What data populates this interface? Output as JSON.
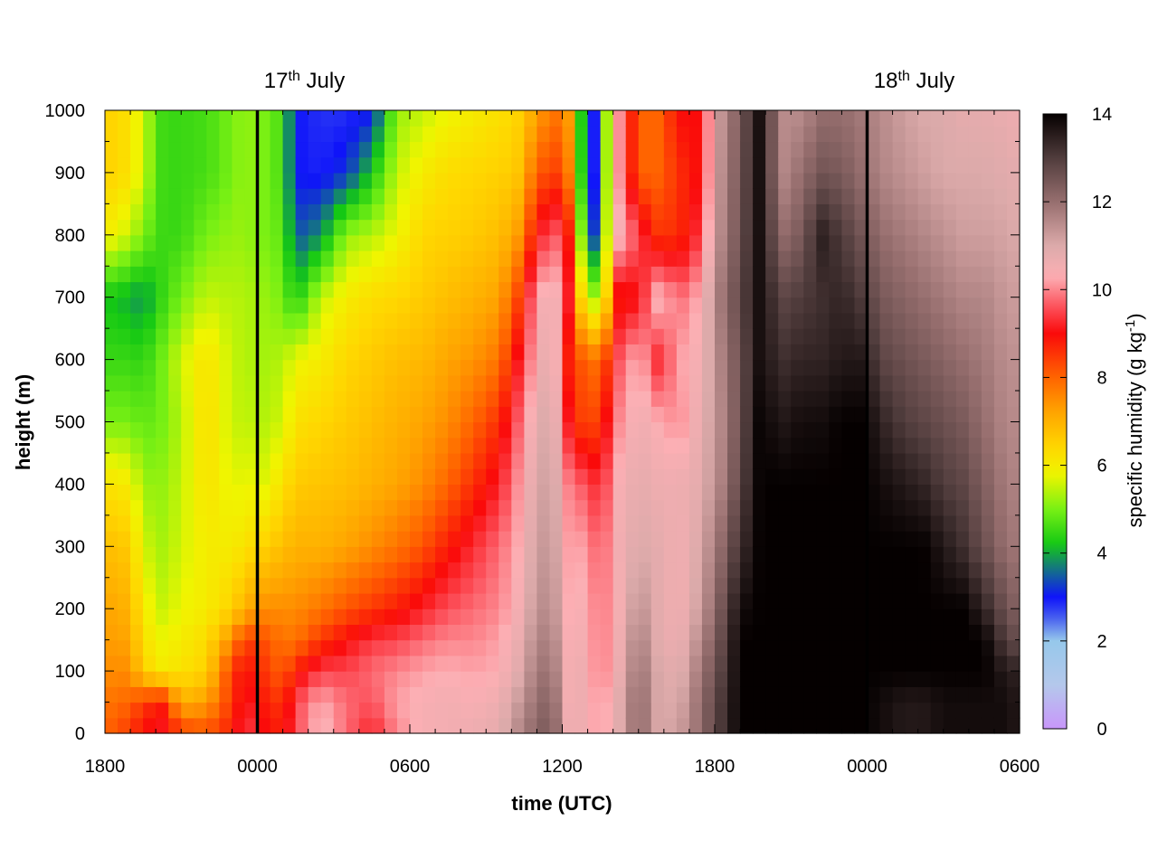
{
  "chart_data": {
    "type": "heatmap",
    "xlabel": "time (UTC)",
    "ylabel": "height (m)",
    "x_ticks": [
      "1800",
      "0000",
      "0600",
      "1200",
      "1800",
      "0000",
      "0600"
    ],
    "x_tick_hours": [
      0,
      6,
      12,
      18,
      24,
      30,
      36
    ],
    "x_range_hours": [
      0,
      36
    ],
    "y_ticks": [
      "0",
      "100",
      "200",
      "300",
      "400",
      "500",
      "600",
      "700",
      "800",
      "900",
      "1000"
    ],
    "ylim": [
      0,
      1000
    ],
    "date_markers": [
      {
        "hour": 6,
        "day": "17",
        "suffix": "th",
        "month": "July"
      },
      {
        "hour": 30,
        "day": "18",
        "suffix": "th",
        "month": "July"
      }
    ],
    "colorbar": {
      "label_pre": "specific humidity (g kg",
      "label_sup": "-1",
      "label_post": ")",
      "range": [
        0,
        14
      ],
      "ticks": [
        "0",
        "2",
        "4",
        "6",
        "8",
        "10",
        "12",
        "14"
      ],
      "tick_values": [
        0,
        2,
        4,
        6,
        8,
        10,
        12,
        14
      ]
    },
    "heights": [
      0,
      50,
      100,
      150,
      200,
      300,
      400,
      500,
      600,
      700,
      800,
      900,
      1000
    ],
    "profiles": [
      {
        "t": 0.0,
        "q": [
          8.0,
          7.8,
          7.5,
          7.3,
          7.2,
          6.8,
          6.2,
          5.0,
          4.5,
          4.2,
          6.0,
          6.5,
          6.5
        ]
      },
      {
        "t": 1.0,
        "q": [
          8.5,
          8.0,
          7.5,
          7.2,
          7.0,
          6.6,
          6.0,
          5.0,
          4.5,
          4.0,
          5.5,
          6.2,
          6.2
        ]
      },
      {
        "t": 1.5,
        "q": [
          9.0,
          8.5,
          6.5,
          6.2,
          6.0,
          5.6,
          5.2,
          4.8,
          4.4,
          3.8,
          5.0,
          5.5,
          5.5
        ]
      },
      {
        "t": 2.3,
        "q": [
          9.2,
          8.8,
          6.0,
          5.8,
          5.5,
          5.3,
          5.2,
          5.0,
          5.0,
          4.5,
          4.5,
          4.5,
          4.5
        ]
      },
      {
        "t": 3.0,
        "q": [
          8.5,
          7.0,
          6.2,
          6.0,
          5.8,
          5.6,
          5.5,
          5.4,
          5.6,
          5.0,
          4.5,
          4.5,
          4.5
        ]
      },
      {
        "t": 4.0,
        "q": [
          8.2,
          7.3,
          6.5,
          6.3,
          6.0,
          6.0,
          6.2,
          6.3,
          6.2,
          5.5,
          5.0,
          4.6,
          4.6
        ]
      },
      {
        "t": 5.0,
        "q": [
          8.8,
          8.5,
          8.5,
          7.5,
          6.5,
          6.0,
          5.7,
          5.5,
          5.5,
          5.4,
          5.2,
          5.0,
          5.0
        ]
      },
      {
        "t": 5.5,
        "q": [
          9.5,
          9.2,
          9.0,
          8.5,
          7.0,
          6.2,
          5.8,
          5.5,
          5.4,
          5.4,
          5.2,
          5.2,
          5.2
        ]
      },
      {
        "t": 6.3,
        "q": [
          9.0,
          8.8,
          8.5,
          8.2,
          7.5,
          6.5,
          5.7,
          5.4,
          5.3,
          5.2,
          5.0,
          5.0,
          5.0
        ]
      },
      {
        "t": 7.0,
        "q": [
          8.8,
          8.5,
          8.0,
          7.8,
          7.5,
          6.8,
          6.2,
          5.6,
          5.4,
          5.0,
          4.8,
          4.6,
          4.6
        ]
      },
      {
        "t": 7.5,
        "q": [
          9.5,
          9.5,
          8.8,
          7.8,
          7.5,
          7.0,
          6.6,
          6.2,
          5.8,
          4.2,
          3.4,
          3.0,
          3.0
        ]
      },
      {
        "t": 8.5,
        "q": [
          10.5,
          10.3,
          9.5,
          8.5,
          7.8,
          7.0,
          6.7,
          6.4,
          6.0,
          5.5,
          3.8,
          2.9,
          2.8
        ]
      },
      {
        "t": 9.5,
        "q": [
          9.8,
          9.8,
          9.5,
          9.0,
          8.2,
          7.2,
          6.8,
          6.6,
          6.4,
          6.0,
          5.2,
          3.2,
          2.8
        ]
      },
      {
        "t": 10.5,
        "q": [
          9.2,
          9.6,
          9.8,
          9.4,
          8.5,
          7.5,
          7.0,
          6.8,
          6.6,
          6.3,
          5.4,
          4.2,
          3.0
        ]
      },
      {
        "t": 11.5,
        "q": [
          10.0,
          10.2,
          10.0,
          9.5,
          8.8,
          7.8,
          7.2,
          7.0,
          6.8,
          6.4,
          5.8,
          5.5,
          5.2
        ]
      },
      {
        "t": 12.5,
        "q": [
          10.4,
          10.4,
          10.2,
          9.8,
          9.2,
          8.2,
          7.5,
          7.2,
          6.9,
          6.6,
          6.4,
          6.0,
          5.5
        ]
      },
      {
        "t": 13.5,
        "q": [
          10.5,
          10.5,
          10.3,
          10.0,
          9.6,
          8.8,
          8.0,
          7.5,
          7.2,
          6.8,
          6.5,
          6.3,
          5.8
        ]
      },
      {
        "t": 14.5,
        "q": [
          10.6,
          10.4,
          10.2,
          10.0,
          9.8,
          9.3,
          8.6,
          8.0,
          7.4,
          7.0,
          6.6,
          6.4,
          6.0
        ]
      },
      {
        "t": 15.5,
        "q": [
          10.8,
          10.6,
          10.3,
          10.2,
          10.0,
          9.8,
          9.2,
          8.6,
          7.8,
          7.2,
          6.8,
          6.5,
          6.2
        ]
      },
      {
        "t": 16.2,
        "q": [
          11.5,
          11.2,
          10.8,
          10.6,
          10.4,
          10.2,
          10.0,
          9.6,
          9.0,
          8.2,
          7.2,
          6.6,
          6.4
        ]
      },
      {
        "t": 17.0,
        "q": [
          12.2,
          12.0,
          11.8,
          11.6,
          11.4,
          11.2,
          11.0,
          10.8,
          10.4,
          10.2,
          9.0,
          8.0,
          7.2
        ]
      },
      {
        "t": 17.6,
        "q": [
          12.5,
          12.3,
          12.0,
          11.8,
          11.6,
          11.4,
          11.3,
          11.2,
          11.0,
          10.8,
          9.8,
          8.5,
          7.8
        ]
      },
      {
        "t": 18.2,
        "q": [
          10.6,
          10.5,
          10.5,
          10.4,
          10.3,
          10.2,
          10.0,
          9.2,
          8.8,
          9.5,
          9.2,
          8.0,
          7.6
        ]
      },
      {
        "t": 18.9,
        "q": [
          10.6,
          10.6,
          10.6,
          10.5,
          10.4,
          10.2,
          9.6,
          8.2,
          8.0,
          5.5,
          4.0,
          3.4,
          3.4
        ]
      },
      {
        "t": 19.5,
        "q": [
          10.0,
          10.0,
          9.8,
          9.8,
          9.8,
          9.6,
          9.2,
          8.5,
          7.8,
          5.2,
          2.8,
          2.6,
          2.6
        ]
      },
      {
        "t": 20.2,
        "q": [
          10.8,
          10.8,
          10.6,
          10.5,
          10.4,
          10.5,
          10.4,
          10.0,
          9.6,
          8.8,
          10.5,
          10.2,
          10.2
        ]
      },
      {
        "t": 21.0,
        "q": [
          12.2,
          12.2,
          12.0,
          11.8,
          11.5,
          11.0,
          10.8,
          10.6,
          10.4,
          9.0,
          9.5,
          8.0,
          8.0
        ]
      },
      {
        "t": 21.8,
        "q": [
          11.0,
          11.0,
          11.0,
          10.8,
          10.8,
          10.8,
          10.6,
          10.3,
          9.2,
          10.5,
          8.5,
          8.0,
          8.0
        ]
      },
      {
        "t": 22.6,
        "q": [
          11.2,
          11.0,
          10.8,
          10.6,
          10.5,
          10.5,
          10.6,
          10.0,
          10.2,
          9.8,
          8.6,
          8.6,
          9.0
        ]
      },
      {
        "t": 23.4,
        "q": [
          12.0,
          12.0,
          11.8,
          11.5,
          11.2,
          11.0,
          10.8,
          10.7,
          10.5,
          10.3,
          9.4,
          9.0,
          9.0
        ]
      },
      {
        "t": 24.2,
        "q": [
          13.0,
          13.0,
          12.8,
          12.6,
          12.4,
          12.0,
          11.6,
          11.5,
          11.6,
          11.8,
          11.5,
          11.4,
          11.3
        ]
      },
      {
        "t": 25.0,
        "q": [
          14.0,
          14.0,
          14.0,
          14.0,
          13.8,
          13.2,
          12.8,
          12.6,
          12.6,
          12.8,
          12.6,
          12.5,
          12.4
        ]
      },
      {
        "t": 25.8,
        "q": [
          14.0,
          14.0,
          14.0,
          14.0,
          14.0,
          14.0,
          14.0,
          14.0,
          13.8,
          13.8,
          13.8,
          13.8,
          13.8
        ]
      },
      {
        "t": 26.6,
        "q": [
          14.0,
          14.0,
          14.0,
          14.0,
          14.0,
          14.0,
          14.0,
          13.6,
          13.2,
          12.8,
          12.0,
          11.5,
          11.5
        ]
      },
      {
        "t": 27.4,
        "q": [
          14.0,
          14.0,
          14.0,
          14.0,
          14.0,
          14.0,
          14.0,
          13.8,
          13.4,
          13.0,
          12.4,
          12.0,
          11.5
        ]
      },
      {
        "t": 28.2,
        "q": [
          14.0,
          14.0,
          14.0,
          14.0,
          14.0,
          14.0,
          14.0,
          13.8,
          13.4,
          13.2,
          13.5,
          12.5,
          12.0
        ]
      },
      {
        "t": 29.0,
        "q": [
          14.0,
          14.0,
          14.0,
          14.0,
          14.0,
          14.0,
          14.0,
          14.0,
          13.6,
          13.4,
          13.0,
          12.4,
          12.0
        ]
      },
      {
        "t": 29.8,
        "q": [
          14.0,
          14.0,
          14.0,
          14.0,
          14.0,
          14.0,
          14.0,
          14.0,
          13.6,
          13.0,
          12.5,
          12.0,
          11.8
        ]
      },
      {
        "t": 30.6,
        "q": [
          13.8,
          13.8,
          14.0,
          14.0,
          14.0,
          14.0,
          13.8,
          13.4,
          12.8,
          12.4,
          12.0,
          11.6,
          11.5
        ]
      },
      {
        "t": 31.4,
        "q": [
          13.6,
          13.6,
          14.0,
          14.0,
          14.0,
          14.0,
          13.6,
          13.0,
          12.6,
          12.2,
          11.8,
          11.4,
          11.2
        ]
      },
      {
        "t": 32.2,
        "q": [
          13.6,
          13.6,
          14.0,
          14.0,
          14.0,
          14.0,
          13.4,
          12.8,
          12.4,
          12.0,
          11.6,
          11.2,
          11.0
        ]
      },
      {
        "t": 33.0,
        "q": [
          13.8,
          13.8,
          14.0,
          14.0,
          14.0,
          13.6,
          13.0,
          12.6,
          12.2,
          11.8,
          11.4,
          11.0,
          11.0
        ]
      },
      {
        "t": 33.8,
        "q": [
          13.8,
          13.8,
          14.0,
          14.0,
          14.0,
          13.2,
          12.8,
          12.4,
          12.0,
          11.6,
          11.2,
          11.0,
          10.8
        ]
      },
      {
        "t": 34.6,
        "q": [
          13.8,
          13.8,
          14.0,
          14.0,
          13.4,
          12.6,
          12.3,
          12.0,
          11.8,
          11.6,
          11.2,
          11.0,
          10.8
        ]
      },
      {
        "t": 35.4,
        "q": [
          13.8,
          13.8,
          13.6,
          13.0,
          12.6,
          12.0,
          11.8,
          11.6,
          11.5,
          11.3,
          11.1,
          10.9,
          10.7
        ]
      },
      {
        "t": 36.0,
        "q": [
          13.6,
          13.6,
          13.4,
          12.6,
          12.2,
          11.8,
          11.6,
          11.5,
          11.4,
          11.2,
          11.0,
          10.8,
          10.6
        ]
      }
    ]
  }
}
